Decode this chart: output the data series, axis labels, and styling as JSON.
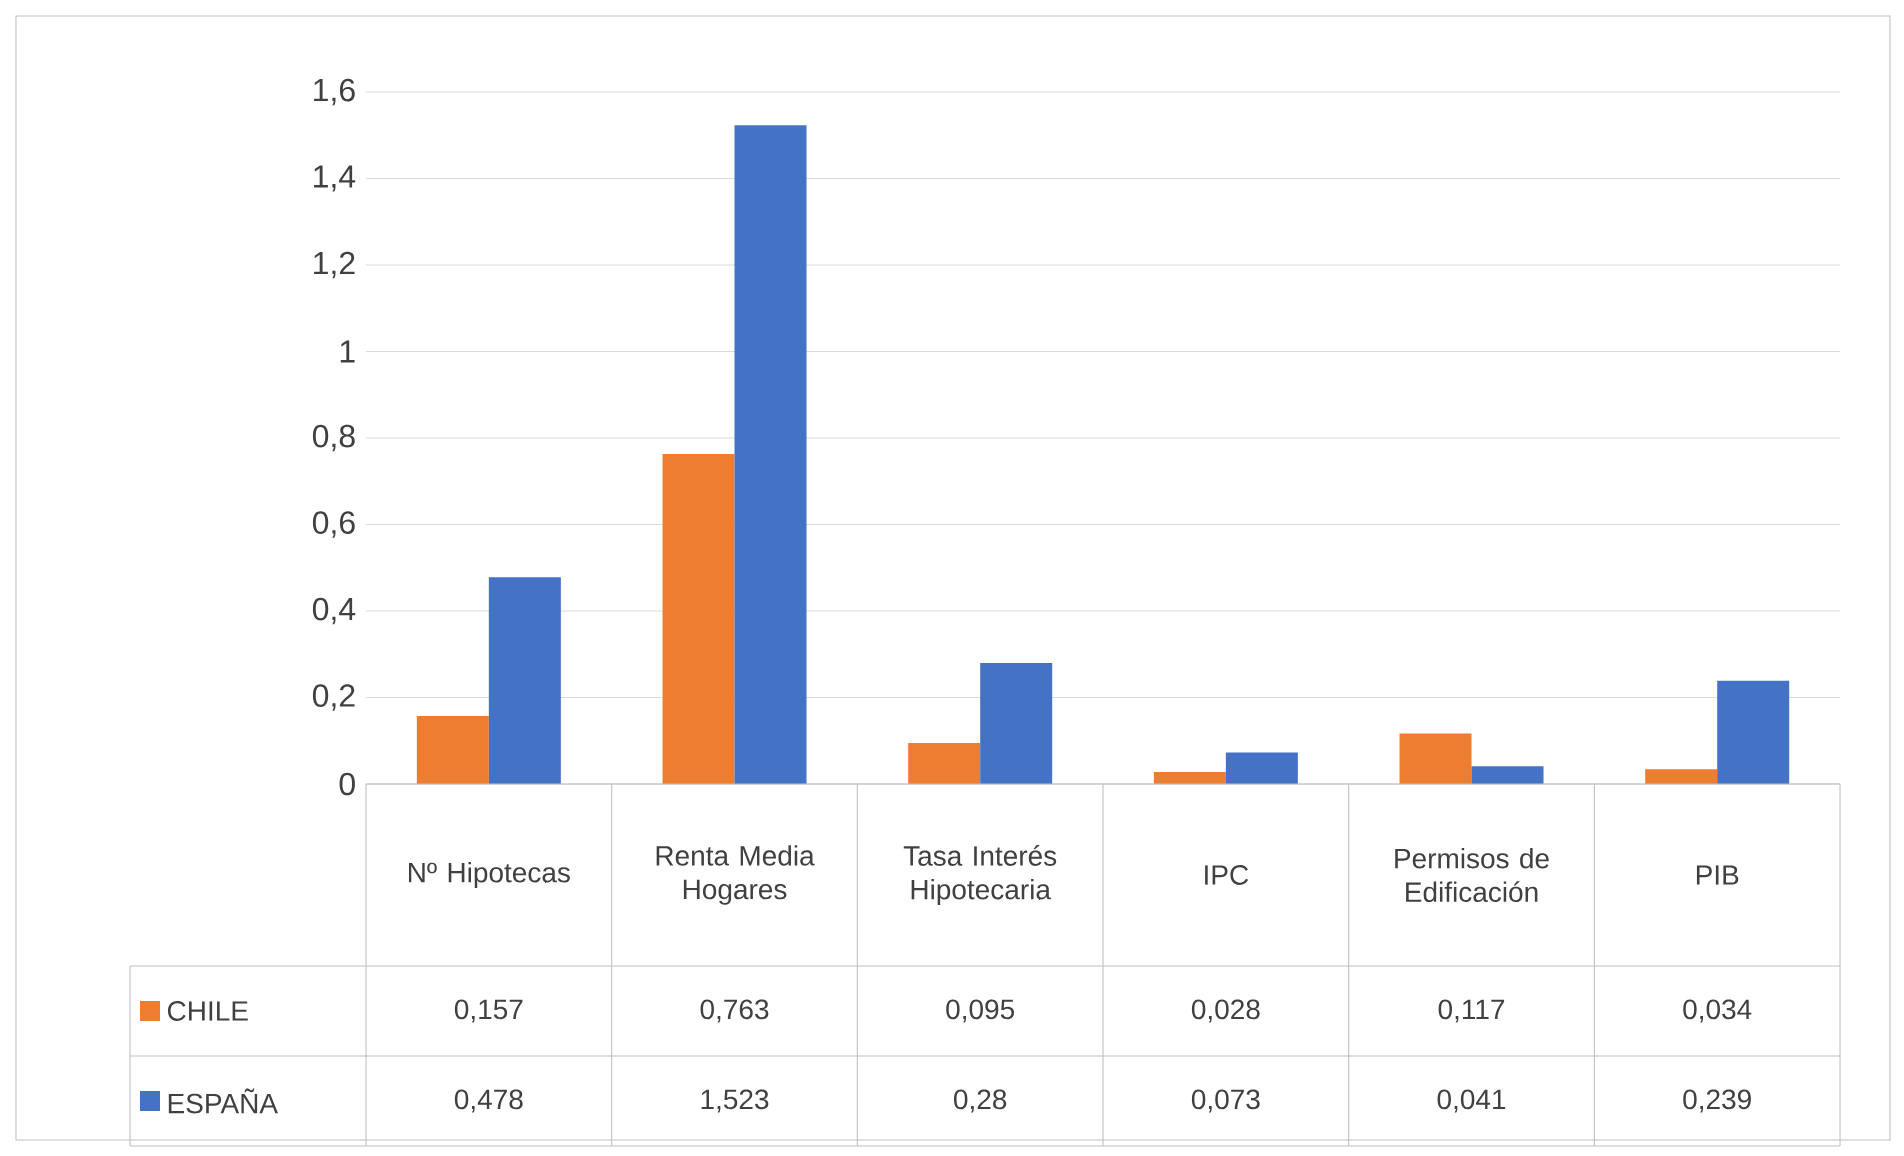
{
  "chart_data": {
    "type": "bar",
    "categories": [
      "Nº Hipotecas",
      "Renta Media Hogares",
      "Tasa Interés Hipotecaria",
      "IPC",
      "Permisos de Edificación",
      "PIB"
    ],
    "series": [
      {
        "name": "CHILE",
        "color": "#ed7d31",
        "values": [
          0.157,
          0.763,
          0.095,
          0.028,
          0.117,
          0.034
        ],
        "value_labels": [
          "0,157",
          "0,763",
          "0,095",
          "0,028",
          "0,117",
          "0,034"
        ]
      },
      {
        "name": "ESPAÑA",
        "color": "#4472c4",
        "values": [
          0.478,
          1.523,
          0.28,
          0.073,
          0.041,
          0.239
        ],
        "value_labels": [
          "0,478",
          "1,523",
          "0,28",
          "0,073",
          "0,041",
          "0,239"
        ]
      }
    ],
    "ylim": [
      0,
      1.6
    ],
    "yticks": [
      0,
      {
        "value": 0.2,
        "label": "0,2"
      },
      {
        "value": 0.4,
        "label": "0,4"
      },
      {
        "value": 0.6,
        "label": "0,6"
      },
      {
        "value": 0.8,
        "label": "0,8"
      },
      1,
      {
        "value": 1.2,
        "label": "1,2"
      },
      {
        "value": 1.4,
        "label": "1,4"
      },
      {
        "value": 1.6,
        "label": "1,6"
      }
    ],
    "grid": "y",
    "legend": "bottom"
  }
}
